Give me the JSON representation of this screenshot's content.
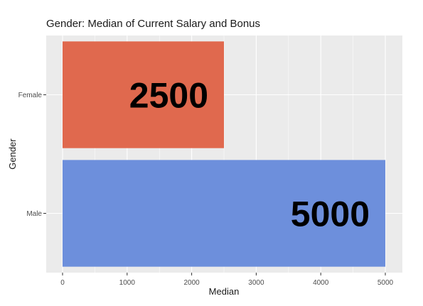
{
  "chart_data": {
    "type": "bar",
    "orientation": "horizontal",
    "title": "Gender: Median of Current Salary and Bonus",
    "xlabel": "Median",
    "ylabel": "Gender",
    "categories": [
      "Female",
      "Male"
    ],
    "values": [
      2500,
      5000
    ],
    "data_labels": [
      "2500",
      "5000"
    ],
    "xlim": [
      0,
      5000
    ],
    "x_ticks": [
      0,
      1000,
      2000,
      3000,
      4000,
      5000
    ],
    "bar_colors": [
      "#E0694E",
      "#6D8FDC"
    ],
    "panel_background": "#EBEBEB",
    "gridline_color": "#FFFFFF",
    "grid": true,
    "legend": "none"
  }
}
